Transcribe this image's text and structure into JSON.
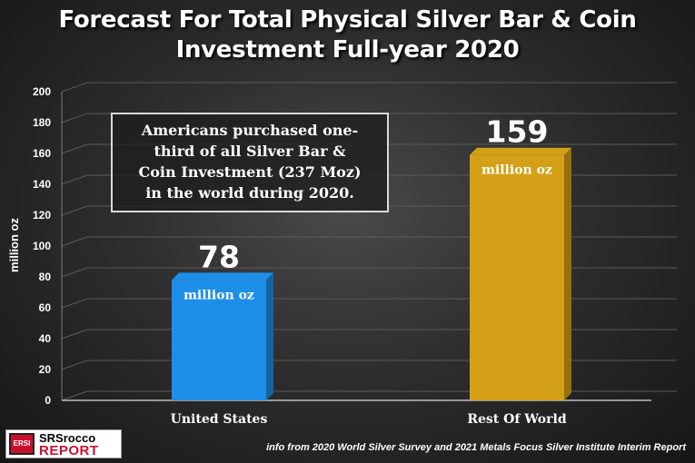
{
  "title": {
    "line1": "Forecast For Total Physical Silver Bar & Coin",
    "line2": "Investment Full-year 2020"
  },
  "callout": {
    "line1": "Americans purchased one-",
    "line2": "third of all Silver Bar &",
    "line3": "Coin Investment (237 Moz)",
    "line4": "in the world during 2020."
  },
  "source": "info from 2020 World Silver Survey and 2021 Metals Focus Silver Institute Interim Report",
  "logo": {
    "text_top": "SRSrocco",
    "text_bottom": "REPORT",
    "mark": "ERSI"
  },
  "colors": {
    "united_states": "#1e8fe8",
    "rest_of_world": "#d4a017",
    "background": "#2e2e2e",
    "gridline": "#5a5a5a"
  },
  "chart_data": {
    "type": "bar",
    "title": "Forecast For Total Physical Silver Bar & Coin Investment Full-year 2020",
    "categories": [
      "United States",
      "Rest Of World"
    ],
    "values": [
      78,
      159
    ],
    "value_labels": [
      "78",
      "159"
    ],
    "unit_label": "million oz",
    "xlabel": "",
    "ylabel": "million oz",
    "ylim": [
      0,
      200
    ],
    "yticks": [
      "0",
      "20",
      "40",
      "60",
      "80",
      "100",
      "120",
      "140",
      "160",
      "180",
      "200"
    ],
    "grid": true,
    "legend": "none"
  }
}
